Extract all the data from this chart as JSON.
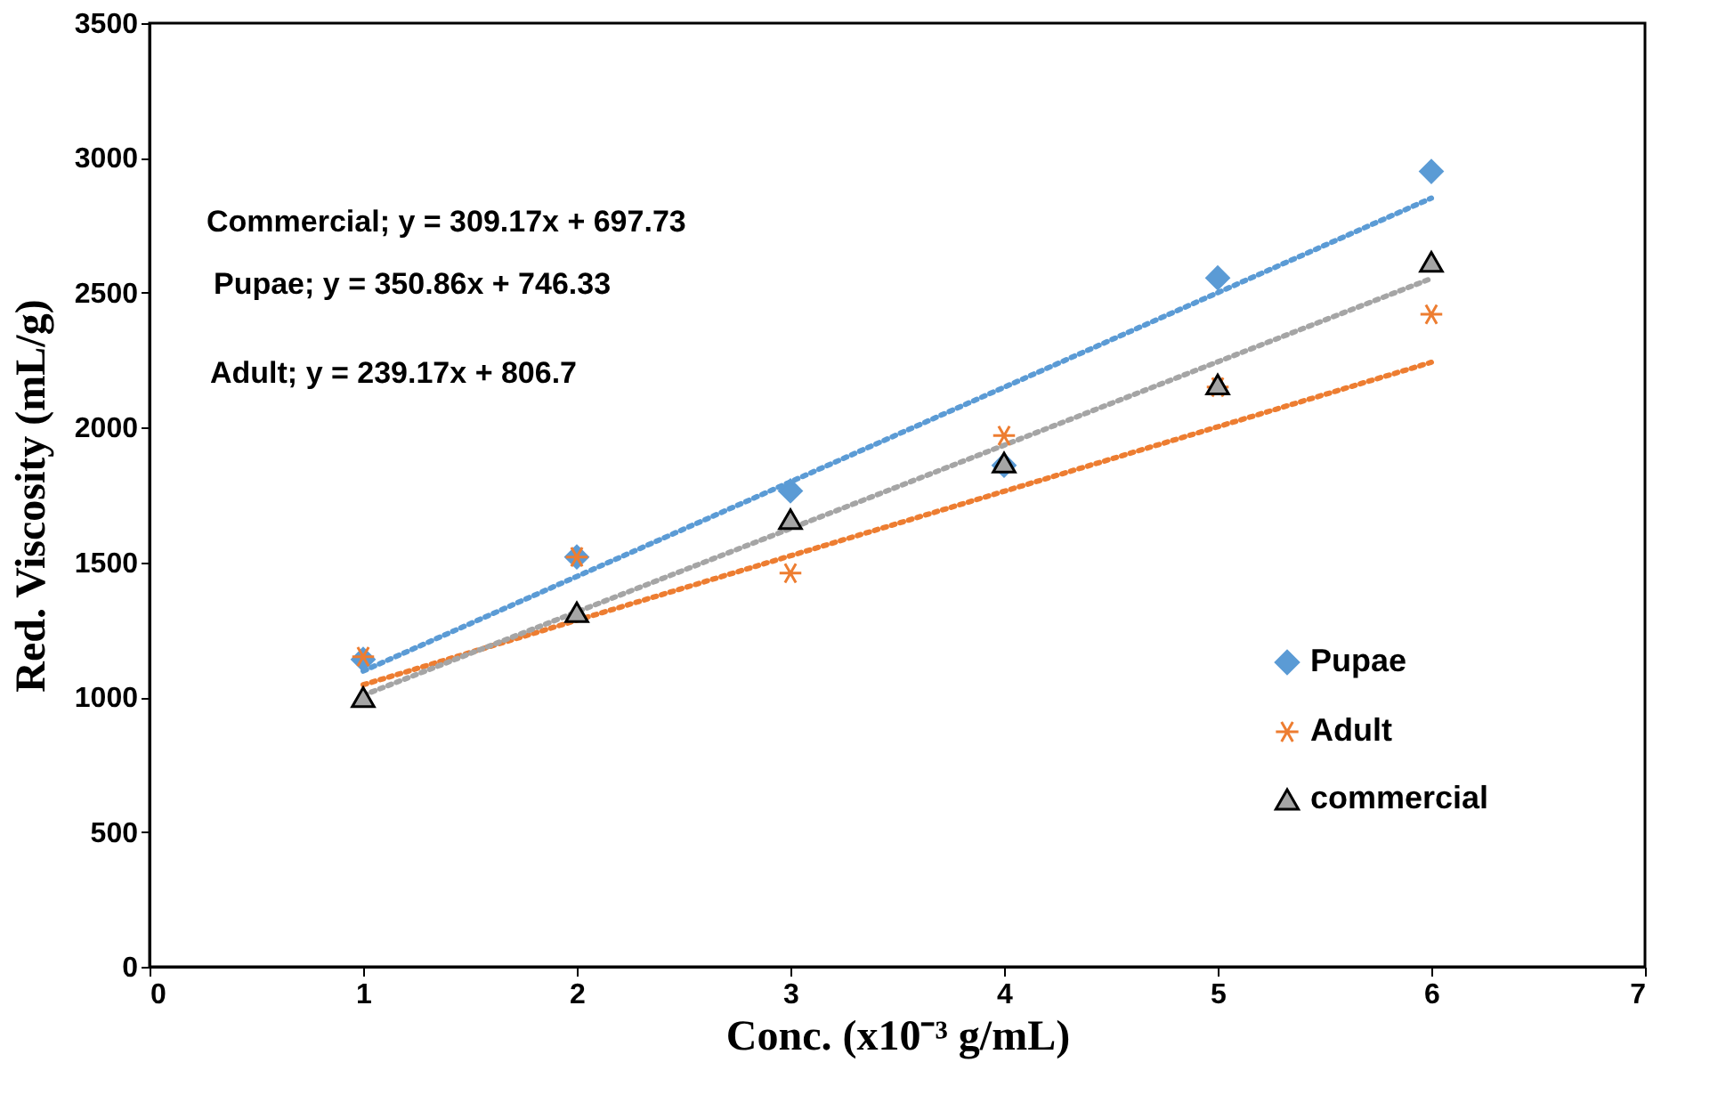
{
  "chart_data": {
    "type": "scatter",
    "xlabel": "Conc. (x10⁻³ g/mL)",
    "ylabel": "Red. Viscosity (mL/g)",
    "xlim": [
      0,
      7
    ],
    "xticks": [
      0,
      1,
      2,
      3,
      4,
      5,
      6,
      7
    ],
    "ylim": [
      0,
      3500
    ],
    "yticks": [
      0,
      500,
      1000,
      1500,
      2000,
      2500,
      3000,
      3500
    ],
    "grid": false,
    "legend": "bottom right",
    "annotations": [
      "Commercial; y = 309.17x + 697.73",
      "Pupae; y = 350.86x + 746.33",
      "Adult; y = 239.17x + 806.7"
    ],
    "series": [
      {
        "name": "Pupae",
        "marker": "diamond",
        "color": "#5b9bd5",
        "x": [
          1,
          2,
          3,
          4,
          5,
          6
        ],
        "values": [
          1140,
          1520,
          1765,
          1860,
          2555,
          2950
        ]
      },
      {
        "name": "Adult",
        "marker": "cross",
        "color": "#ed7d31",
        "x": [
          1,
          2,
          3,
          4,
          5,
          6
        ],
        "values": [
          1150,
          1520,
          1460,
          1970,
          2150,
          2420
        ]
      },
      {
        "name": "commercial",
        "marker": "triangle",
        "color": "#a5a5a5",
        "x": [
          1,
          2,
          3,
          4,
          5,
          6
        ],
        "values": [
          1000,
          1315,
          1660,
          1870,
          2160,
          2615
        ]
      },
      {
        "type": "line",
        "line_style": "dotted",
        "marker": "none",
        "color": "#5b9bd5",
        "x": [
          1,
          6
        ],
        "values": [
          1097,
          2851
        ]
      },
      {
        "type": "line",
        "line_style": "dotted",
        "marker": "none",
        "color": "#ed7d31",
        "x": [
          1,
          6
        ],
        "values": [
          1046,
          2242
        ]
      },
      {
        "type": "line",
        "line_style": "dotted",
        "marker": "none",
        "color": "#a5a5a5",
        "x": [
          1,
          6
        ],
        "values": [
          1007,
          2553
        ]
      }
    ]
  }
}
